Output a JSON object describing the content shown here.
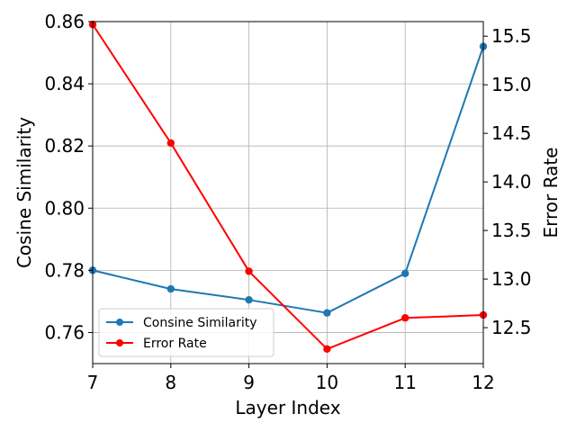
{
  "chart_data": {
    "type": "line",
    "xlabel": "Layer Index",
    "ylabel_left": "Cosine Similarity",
    "ylabel_right": "Error Rate",
    "x": [
      7,
      8,
      9,
      10,
      11,
      12
    ],
    "xlim": [
      7,
      12
    ],
    "ylim_left": [
      0.75,
      0.86
    ],
    "ylim_right": [
      12.13,
      15.65
    ],
    "x_ticks": [
      "7",
      "8",
      "9",
      "10",
      "11",
      "12"
    ],
    "y_left_ticks": [
      "0.76",
      "0.78",
      "0.80",
      "0.82",
      "0.84",
      "0.86"
    ],
    "y_right_ticks": [
      "12.5",
      "13.0",
      "13.5",
      "14.0",
      "14.5",
      "15.0",
      "15.5"
    ],
    "grid": true,
    "legend_position": "lower-left",
    "series": [
      {
        "name": "Consine Similarity",
        "axis": "left",
        "color": "#1f77b4",
        "values": [
          0.78,
          0.774,
          0.7705,
          0.7663,
          0.779,
          0.852
        ]
      },
      {
        "name": "Error Rate",
        "axis": "right",
        "color": "#ff0000",
        "values": [
          15.62,
          14.4,
          13.08,
          12.28,
          12.6,
          12.63
        ]
      }
    ]
  }
}
